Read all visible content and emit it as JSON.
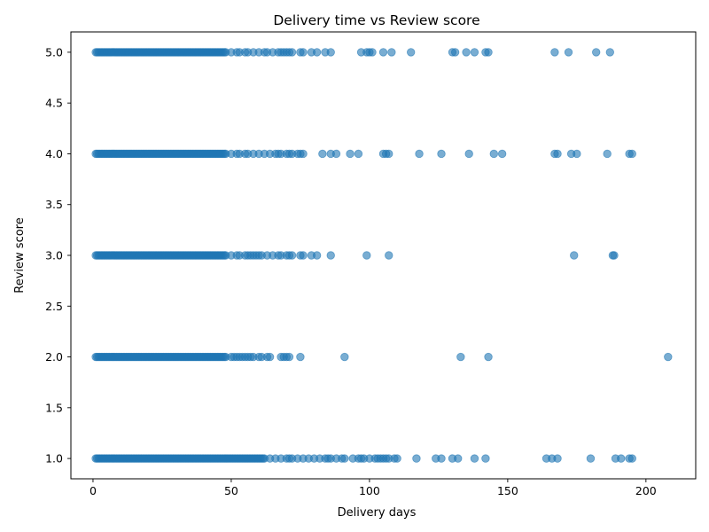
{
  "chart_data": {
    "type": "scatter",
    "title": "Delivery time vs Review score",
    "xlabel": "Delivery days",
    "ylabel": "Review score",
    "xlim": [
      -8,
      218
    ],
    "ylim": [
      0.8,
      5.2
    ],
    "xticks": [
      0,
      50,
      100,
      150,
      200
    ],
    "yticks": [
      1.0,
      1.5,
      2.0,
      2.5,
      3.0,
      3.5,
      4.0,
      4.5,
      5.0
    ],
    "ytick_labels": [
      "1.0",
      "1.5",
      "2.0",
      "2.5",
      "3.0",
      "3.5",
      "4.0",
      "4.5",
      "5.0"
    ],
    "grid": false,
    "legend": "none",
    "marker_color": "#1f77b4",
    "marker_alpha": 0.6,
    "series": [
      {
        "score": 5,
        "dense_range": [
          1,
          48
        ],
        "x": [
          50,
          52,
          53,
          55,
          56,
          58,
          60,
          62,
          63,
          65,
          67,
          68,
          69,
          70,
          71,
          72,
          75,
          76,
          79,
          81,
          84,
          86,
          97,
          99,
          100,
          101,
          105,
          108,
          115,
          130,
          131,
          135,
          138,
          142,
          143,
          167,
          172,
          182,
          187
        ]
      },
      {
        "score": 4,
        "dense_range": [
          1,
          48
        ],
        "x": [
          50,
          52,
          53,
          55,
          56,
          58,
          60,
          62,
          64,
          66,
          67,
          68,
          70,
          71,
          72,
          74,
          75,
          76,
          83,
          86,
          88,
          93,
          96,
          105,
          106,
          107,
          118,
          126,
          136,
          145,
          148,
          167,
          168,
          173,
          175,
          186,
          194,
          195
        ]
      },
      {
        "score": 3,
        "dense_range": [
          1,
          48
        ],
        "x": [
          50,
          52,
          53,
          55,
          56,
          57,
          58,
          59,
          60,
          61,
          63,
          65,
          67,
          68,
          70,
          71,
          72,
          75,
          76,
          79,
          81,
          86,
          99,
          107,
          174,
          188,
          188.5
        ]
      },
      {
        "score": 2,
        "dense_range": [
          1,
          48
        ],
        "x": [
          50,
          51,
          52,
          53,
          54,
          55,
          56,
          57,
          58,
          60,
          61,
          63,
          64,
          68,
          69,
          70,
          71,
          75,
          91,
          133,
          143,
          208
        ]
      },
      {
        "score": 1,
        "dense_range": [
          1,
          62
        ],
        "x": [
          64,
          66,
          68,
          70,
          71,
          72,
          74,
          76,
          78,
          80,
          82,
          84,
          85,
          86,
          88,
          90,
          91,
          94,
          96,
          97,
          98,
          100,
          102,
          103,
          104,
          105,
          106,
          107,
          109,
          110,
          117,
          124,
          126,
          130,
          132,
          138,
          142,
          164,
          166,
          168,
          180,
          189,
          191,
          194,
          195
        ]
      }
    ]
  }
}
